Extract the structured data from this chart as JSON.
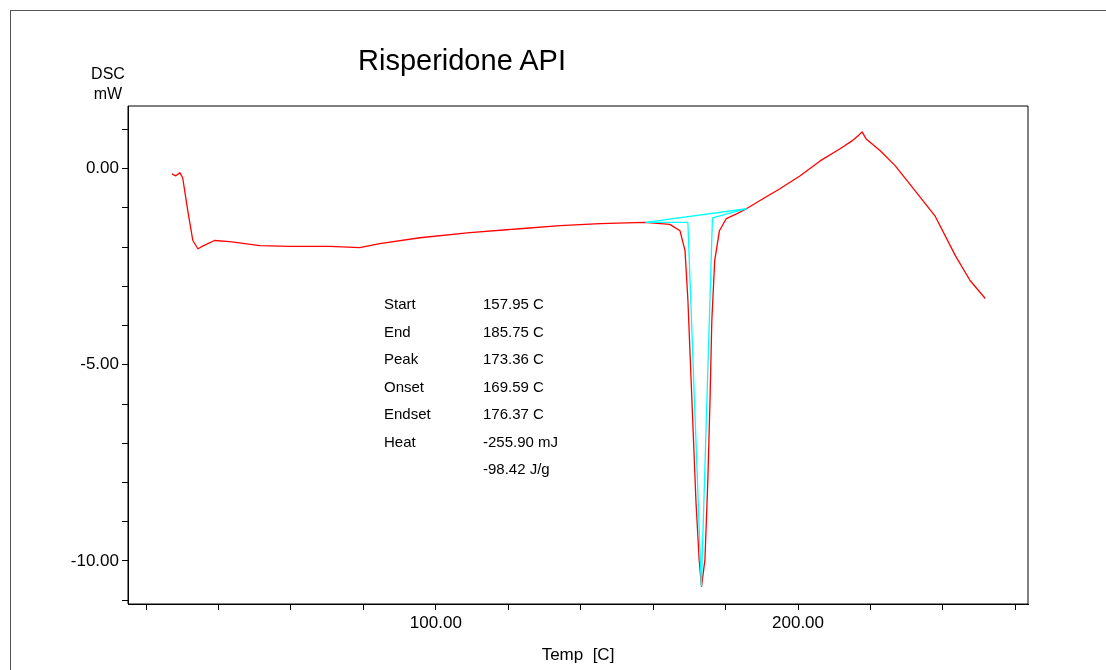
{
  "chart_data": {
    "type": "line",
    "title": "Risperidone API",
    "xlabel": "Temp  [C]",
    "ylabel": "DSC mW",
    "xlim": [
      15,
      263.5
    ],
    "ylim": [
      -11.1,
      1.6
    ],
    "xticks": [
      {
        "value": 20,
        "label": null
      },
      {
        "value": 40,
        "label": null
      },
      {
        "value": 60,
        "label": null
      },
      {
        "value": 80,
        "label": null
      },
      {
        "value": 100,
        "label": "100.00"
      },
      {
        "value": 120,
        "label": null
      },
      {
        "value": 140,
        "label": null
      },
      {
        "value": 160,
        "label": null
      },
      {
        "value": 180,
        "label": null
      },
      {
        "value": 200,
        "label": "200.00"
      },
      {
        "value": 220,
        "label": null
      },
      {
        "value": 240,
        "label": null
      },
      {
        "value": 260,
        "label": null
      }
    ],
    "yticks": [
      {
        "value": -11,
        "label": null
      },
      {
        "value": -10,
        "label": "-10.00"
      },
      {
        "value": -9,
        "label": null
      },
      {
        "value": -8,
        "label": null
      },
      {
        "value": -7,
        "label": null
      },
      {
        "value": -6,
        "label": null
      },
      {
        "value": -5,
        "label": "-5.00"
      },
      {
        "value": -4,
        "label": null
      },
      {
        "value": -3,
        "label": null
      },
      {
        "value": -2,
        "label": null
      },
      {
        "value": -1,
        "label": null
      },
      {
        "value": 0,
        "label": "0.00"
      },
      {
        "value": 1,
        "label": null
      }
    ],
    "marker": "none",
    "line_style": "solid",
    "annotations": [
      "Start\t157.95 C",
      "End\t185.75 C",
      "Peak\t173.36 C",
      "Onset\t169.59 C",
      "Endset\t176.37 C",
      "Heat\t-255.90 mJ",
      "\t-98.42 J/g"
    ],
    "series": [
      {
        "color": "#ff0000",
        "x": [
          27.1,
          28.2,
          29.3,
          30.1,
          31.5,
          32.9,
          34.3,
          35.9,
          38.9,
          43.1,
          51.4,
          59.7,
          70.7,
          79.0,
          84.5,
          95.6,
          109.4,
          123.2,
          134.3,
          145.3,
          157.7,
          164.6,
          167.4,
          168.8,
          169.6,
          170.7,
          171.8,
          172.7,
          173.36,
          174.3,
          175.1,
          175.7,
          176.2,
          177.0,
          178.3,
          180.2,
          183.0,
          185.4,
          189.5,
          195.0,
          200.6,
          206.1,
          211.6,
          214.9,
          216.6,
          217.7,
          218.8,
          220.4,
          222.7,
          226.8,
          232.3,
          237.8,
          243.4,
          247.5,
          251.7
        ],
        "values": [
          -0.13,
          -0.18,
          -0.1,
          -0.23,
          -1.07,
          -1.83,
          -2.04,
          -1.96,
          -1.83,
          -1.86,
          -1.96,
          -1.98,
          -1.98,
          -2.01,
          -1.91,
          -1.76,
          -1.63,
          -1.53,
          -1.45,
          -1.4,
          -1.37,
          -1.42,
          -1.58,
          -2.09,
          -3.36,
          -5.9,
          -8.45,
          -9.97,
          -10.65,
          -9.97,
          -7.94,
          -5.9,
          -3.87,
          -2.34,
          -1.58,
          -1.27,
          -1.15,
          -1.04,
          -0.81,
          -0.51,
          -0.18,
          0.2,
          0.51,
          0.71,
          0.84,
          0.94,
          0.76,
          0.64,
          0.46,
          0.08,
          -0.56,
          -1.2,
          -2.21,
          -2.85,
          -3.31
        ]
      },
      {
        "color": "#00ffff",
        "x": [
          157.95,
          185.75
        ],
        "values": [
          -1.37,
          -1.02
        ]
      },
      {
        "color": "#00ffff",
        "x": [
          157.95,
          169.59,
          173.3
        ],
        "values": [
          -1.37,
          -1.37,
          -10.65
        ]
      },
      {
        "color": "#00ffff",
        "x": [
          173.3,
          176.37,
          185.75
        ],
        "values": [
          -10.65,
          -1.25,
          -1.02
        ]
      }
    ]
  }
}
